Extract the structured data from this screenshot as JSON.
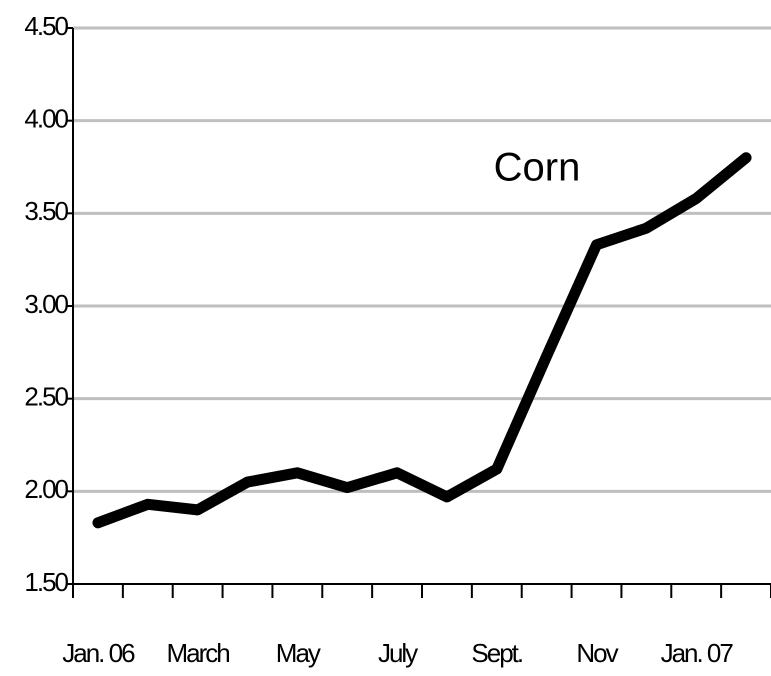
{
  "chart_data": {
    "type": "line",
    "annotation": "Corn",
    "categories": [
      "Jan. 06",
      null,
      "March",
      null,
      "May",
      null,
      "July",
      null,
      "Sept.",
      null,
      "Nov",
      null,
      "Jan. 07",
      null
    ],
    "values": [
      1.83,
      1.93,
      1.9,
      2.05,
      2.1,
      2.02,
      2.1,
      1.97,
      2.12,
      2.73,
      3.33,
      3.42,
      3.58,
      3.8
    ],
    "color": "#000000",
    "ylim": [
      1.5,
      4.5
    ],
    "yticks": [
      {
        "value": 1.5,
        "label": "1.50"
      },
      {
        "value": 2,
        "label": "2.00"
      },
      {
        "value": 2.5,
        "label": "2.50"
      },
      {
        "value": 3,
        "label": "3.00"
      },
      {
        "value": 3.5,
        "label": "3.50"
      },
      {
        "value": 4,
        "label": "4.00"
      },
      {
        "value": 4.5,
        "label": "4.50"
      }
    ],
    "grid": true
  }
}
